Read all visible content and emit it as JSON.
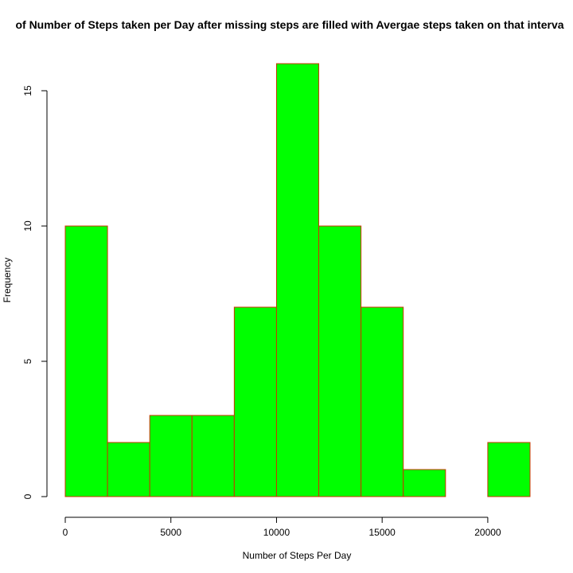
{
  "chart_data": {
    "type": "bar",
    "title": "of Number of Steps taken per Day after missing steps are filled with Avergae steps taken on that interva",
    "xlabel": "Number of Steps Per Day",
    "ylabel": "Frequency",
    "bins": [
      {
        "start": 0,
        "end": 2000,
        "count": 10
      },
      {
        "start": 2000,
        "end": 4000,
        "count": 2
      },
      {
        "start": 4000,
        "end": 6000,
        "count": 3
      },
      {
        "start": 6000,
        "end": 8000,
        "count": 3
      },
      {
        "start": 8000,
        "end": 10000,
        "count": 7
      },
      {
        "start": 10000,
        "end": 12000,
        "count": 16
      },
      {
        "start": 12000,
        "end": 14000,
        "count": 10
      },
      {
        "start": 14000,
        "end": 16000,
        "count": 7
      },
      {
        "start": 16000,
        "end": 18000,
        "count": 1
      },
      {
        "start": 18000,
        "end": 20000,
        "count": 0
      },
      {
        "start": 20000,
        "end": 22000,
        "count": 2
      }
    ],
    "xlim": [
      0,
      22000
    ],
    "ylim": [
      0,
      16
    ],
    "x_ticks": [
      0,
      5000,
      10000,
      15000,
      20000
    ],
    "y_ticks": [
      0,
      5,
      10,
      15
    ],
    "grid": false,
    "colors": {
      "fill": "#00ff00",
      "border": "#cc3300",
      "axis": "#000000"
    }
  }
}
